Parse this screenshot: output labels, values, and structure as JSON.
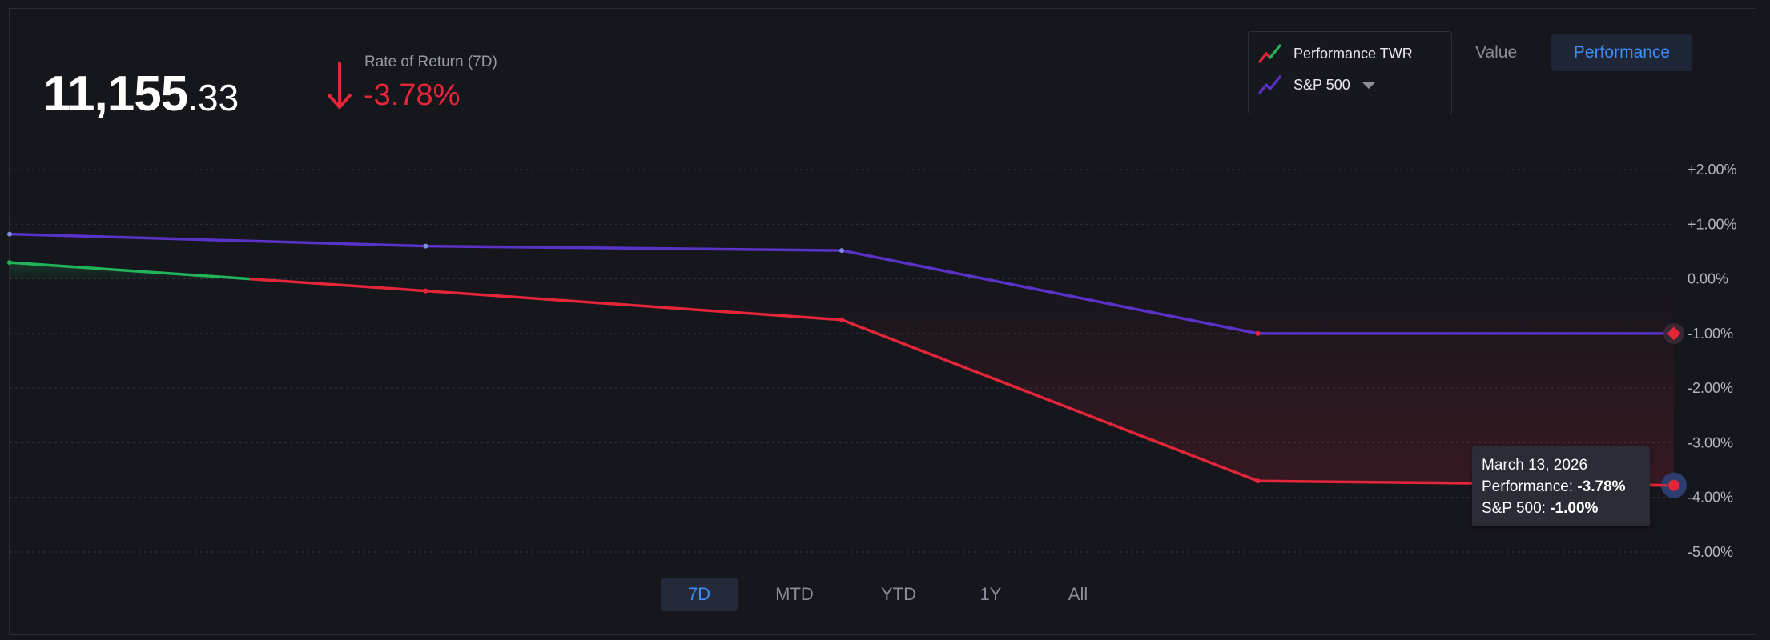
{
  "balance": {
    "integer": "11,155",
    "decimal": ".33"
  },
  "rate_of_return": {
    "label": "Rate of Return (7D)",
    "value": "-3.78%",
    "color": "#e3263a"
  },
  "legend": {
    "items": [
      {
        "label": "Performance TWR",
        "icon": "line-chart-icon-red-green"
      },
      {
        "label": "S&P 500",
        "icon": "line-chart-icon-purple"
      }
    ]
  },
  "view_toggle": {
    "value_label": "Value",
    "performance_label": "Performance",
    "active": "Performance"
  },
  "range_buttons": [
    "7D",
    "MTD",
    "YTD",
    "1Y",
    "All"
  ],
  "active_range": "7D",
  "tooltip": {
    "date": "March 13, 2026",
    "performance_label": "Performance: ",
    "performance_value": "-3.78%",
    "sp500_label": "S&P 500: ",
    "sp500_value": "-1.00%"
  },
  "colors": {
    "positive": "#22b45a",
    "negative": "#e3263a",
    "benchmark": "#5a32c8",
    "accent": "#3e8ef7",
    "background": "#16161d"
  },
  "chart_data": {
    "type": "line",
    "x": [
      1,
      2,
      3,
      4,
      5
    ],
    "series": [
      {
        "name": "Performance TWR",
        "values": [
          0.3,
          -0.22,
          -0.75,
          -3.7,
          -3.78
        ]
      },
      {
        "name": "S&P 500",
        "values": [
          0.82,
          0.6,
          0.52,
          -1.0,
          -1.0
        ]
      }
    ],
    "yticks": [
      "+2.00%",
      "+1.00%",
      "0.00%",
      "-1.00%",
      "-2.00%",
      "-3.00%",
      "-4.00%",
      "-5.00%"
    ],
    "ylim": [
      -5,
      2
    ],
    "grid": true,
    "legend": "top-right"
  }
}
